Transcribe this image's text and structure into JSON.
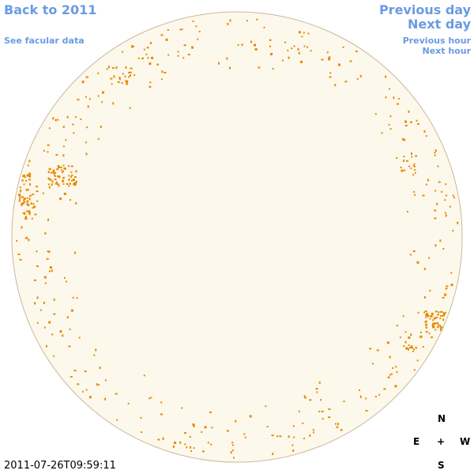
{
  "header": {
    "back_link": "Back to 2011",
    "facular_link": "See facular data"
  },
  "navigation": {
    "previous_day": "Previous day",
    "next_day": "Next day",
    "previous_hour": "Previous hour",
    "next_hour": "Next hour"
  },
  "timestamp": "2011-07-26T09:59:11",
  "compass": {
    "north": "N",
    "east": "E",
    "center": "+",
    "west": "W",
    "south": "S"
  }
}
